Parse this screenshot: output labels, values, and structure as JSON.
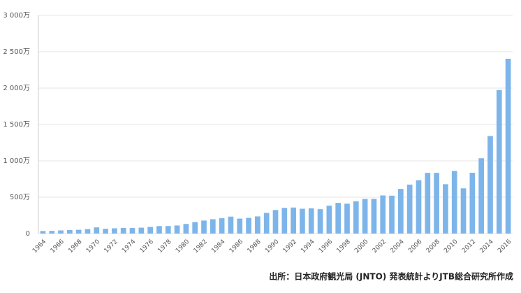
{
  "chart_data": {
    "type": "bar",
    "categories": [
      "1964",
      null,
      "1966",
      null,
      "1968",
      null,
      "1970",
      null,
      "1972",
      null,
      "1974",
      null,
      "1976",
      null,
      "1978",
      null,
      "1980",
      null,
      "1982",
      null,
      "1984",
      null,
      "1986",
      null,
      "1988",
      null,
      "1990",
      null,
      "1992",
      null,
      "1994",
      null,
      "1996",
      null,
      "1998",
      null,
      "2000",
      null,
      "2002",
      null,
      "2004",
      null,
      "2006",
      null,
      "2008",
      null,
      "2010",
      null,
      "2012",
      null,
      "2014",
      null,
      "2016"
    ],
    "values": [
      35,
      37,
      43,
      48,
      52,
      61,
      85,
      66,
      72,
      78,
      76,
      81,
      91,
      103,
      104,
      111,
      132,
      158,
      179,
      197,
      211,
      233,
      206,
      216,
      236,
      284,
      324,
      353,
      358,
      341,
      347,
      335,
      384,
      422,
      411,
      444,
      476,
      477,
      524,
      521,
      614,
      673,
      733,
      835,
      835,
      679,
      861,
      622,
      836,
      1036,
      1341,
      1974,
      2404
    ],
    "color": "#7db5ea",
    "ylim": [
      0,
      3000
    ],
    "yticks": [
      {
        "value": 0,
        "label": "0"
      },
      {
        "value": 500,
        "label": "500万"
      },
      {
        "value": 1000,
        "label": "1 000万"
      },
      {
        "value": 1500,
        "label": "1 500万"
      },
      {
        "value": 2000,
        "label": "2 000万"
      },
      {
        "value": 2500,
        "label": "2 500万"
      },
      {
        "value": 3000,
        "label": "3 000万"
      }
    ],
    "grid": true,
    "source": "出所：日本政府観光局 (JNTO) 発表統計よりJTB総合研究所作成"
  }
}
